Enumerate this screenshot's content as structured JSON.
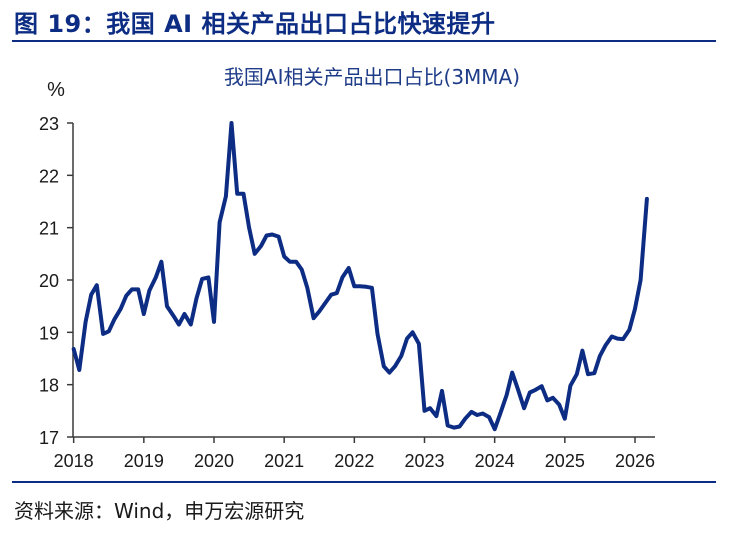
{
  "figure": {
    "title": "图 19：我国 AI 相关产品出口占比快速提升",
    "source": "资料来源：Wind，申万宏源研究"
  },
  "colors": {
    "accent": "#0d2c83",
    "line": "#0d2c83"
  },
  "chart_data": {
    "type": "line",
    "title": "我国AI相关产品出口占比(3MMA)",
    "ylabel": "%",
    "xlabel": "",
    "ylim": [
      17,
      23
    ],
    "yticks": [
      "17",
      "18",
      "19",
      "20",
      "21",
      "22",
      "23"
    ],
    "xlim": [
      2018,
      2026.25
    ],
    "xticks": [
      "2018",
      "2019",
      "2020",
      "2021",
      "2022",
      "2023",
      "2024",
      "2025",
      "2026"
    ],
    "grid": false,
    "series": [
      {
        "points": [
          [
            2018.0,
            18.68
          ],
          [
            2018.08,
            18.28
          ],
          [
            2018.17,
            19.2
          ],
          [
            2018.25,
            19.72
          ],
          [
            2018.33,
            19.9
          ],
          [
            2018.42,
            18.97
          ],
          [
            2018.5,
            19.02
          ],
          [
            2018.58,
            19.25
          ],
          [
            2018.67,
            19.45
          ],
          [
            2018.75,
            19.7
          ],
          [
            2018.83,
            19.82
          ],
          [
            2018.92,
            19.82
          ],
          [
            2019.0,
            19.35
          ],
          [
            2019.08,
            19.8
          ],
          [
            2019.17,
            20.05
          ],
          [
            2019.25,
            20.35
          ],
          [
            2019.33,
            19.5
          ],
          [
            2019.42,
            19.32
          ],
          [
            2019.5,
            19.15
          ],
          [
            2019.58,
            19.35
          ],
          [
            2019.67,
            19.15
          ],
          [
            2019.75,
            19.65
          ],
          [
            2019.83,
            20.02
          ],
          [
            2019.92,
            20.05
          ],
          [
            2020.0,
            19.2
          ],
          [
            2020.08,
            21.1
          ],
          [
            2020.17,
            21.6
          ],
          [
            2020.25,
            23.0
          ],
          [
            2020.33,
            21.65
          ],
          [
            2020.42,
            21.65
          ],
          [
            2020.5,
            21.0
          ],
          [
            2020.58,
            20.5
          ],
          [
            2020.67,
            20.65
          ],
          [
            2020.75,
            20.85
          ],
          [
            2020.83,
            20.87
          ],
          [
            2020.92,
            20.83
          ],
          [
            2021.0,
            20.45
          ],
          [
            2021.08,
            20.35
          ],
          [
            2021.17,
            20.35
          ],
          [
            2021.25,
            20.2
          ],
          [
            2021.33,
            19.85
          ],
          [
            2021.42,
            19.27
          ],
          [
            2021.5,
            19.4
          ],
          [
            2021.58,
            19.55
          ],
          [
            2021.67,
            19.72
          ],
          [
            2021.75,
            19.75
          ],
          [
            2021.83,
            20.05
          ],
          [
            2021.92,
            20.23
          ],
          [
            2022.0,
            19.88
          ],
          [
            2022.08,
            19.88
          ],
          [
            2022.17,
            19.87
          ],
          [
            2022.25,
            19.85
          ],
          [
            2022.33,
            18.97
          ],
          [
            2022.42,
            18.35
          ],
          [
            2022.5,
            18.23
          ],
          [
            2022.58,
            18.35
          ],
          [
            2022.67,
            18.55
          ],
          [
            2022.75,
            18.88
          ],
          [
            2022.83,
            19.0
          ],
          [
            2022.92,
            18.78
          ],
          [
            2023.0,
            17.5
          ],
          [
            2023.08,
            17.55
          ],
          [
            2023.17,
            17.4
          ],
          [
            2023.25,
            17.88
          ],
          [
            2023.33,
            17.22
          ],
          [
            2023.42,
            17.18
          ],
          [
            2023.5,
            17.2
          ],
          [
            2023.58,
            17.35
          ],
          [
            2023.67,
            17.48
          ],
          [
            2023.75,
            17.42
          ],
          [
            2023.83,
            17.45
          ],
          [
            2023.92,
            17.38
          ],
          [
            2024.0,
            17.15
          ],
          [
            2024.08,
            17.45
          ],
          [
            2024.17,
            17.8
          ],
          [
            2024.25,
            18.23
          ],
          [
            2024.33,
            17.92
          ],
          [
            2024.42,
            17.55
          ],
          [
            2024.5,
            17.85
          ],
          [
            2024.58,
            17.9
          ],
          [
            2024.67,
            17.97
          ],
          [
            2024.75,
            17.7
          ],
          [
            2024.83,
            17.75
          ],
          [
            2024.92,
            17.62
          ],
          [
            2025.0,
            17.35
          ],
          [
            2025.08,
            17.98
          ],
          [
            2025.17,
            18.2
          ],
          [
            2025.25,
            18.65
          ],
          [
            2025.33,
            18.2
          ],
          [
            2025.42,
            18.22
          ],
          [
            2025.5,
            18.55
          ],
          [
            2025.58,
            18.75
          ],
          [
            2025.67,
            18.92
          ],
          [
            2025.75,
            18.88
          ],
          [
            2025.83,
            18.87
          ],
          [
            2025.92,
            19.05
          ],
          [
            2026.0,
            19.45
          ],
          [
            2026.08,
            20.0
          ],
          [
            2026.17,
            21.55
          ]
        ]
      }
    ]
  }
}
